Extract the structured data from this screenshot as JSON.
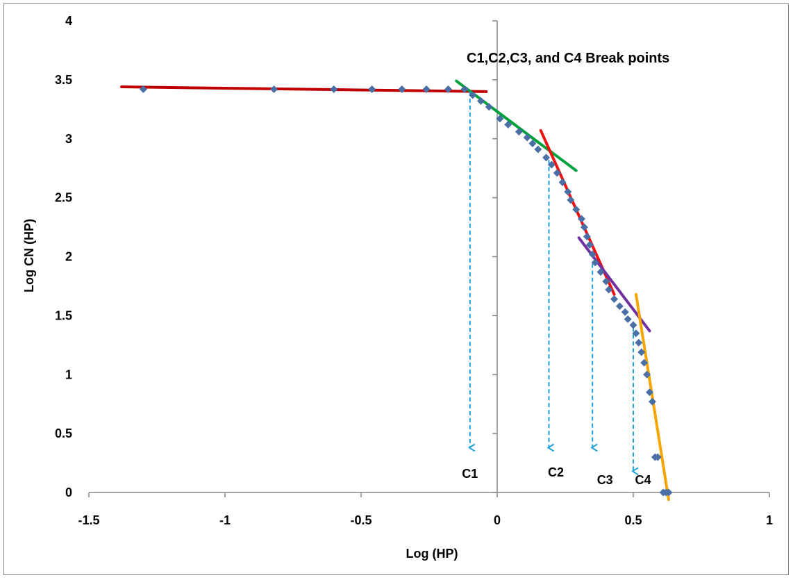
{
  "chart_data": {
    "type": "scatter",
    "title": "C1,C2,C3, and C4 Break points",
    "xlabel": "Log (HP)",
    "ylabel": "Log CN (HP)",
    "xlim": [
      -1.5,
      1
    ],
    "ylim": [
      0,
      4
    ],
    "x_ticks": [
      "-1.5",
      "-1",
      "-0.5",
      "0",
      "0.5",
      "1"
    ],
    "y_ticks": [
      "0",
      "0.5",
      "1",
      "1.5",
      "2",
      "2.5",
      "3",
      "3.5",
      "4"
    ],
    "grid": false,
    "legend": "none",
    "marker_color": "#4a6fa5",
    "points": [
      [
        -1.3,
        3.42
      ],
      [
        -0.82,
        3.42
      ],
      [
        -0.6,
        3.42
      ],
      [
        -0.46,
        3.42
      ],
      [
        -0.35,
        3.42
      ],
      [
        -0.26,
        3.42
      ],
      [
        -0.18,
        3.42
      ],
      [
        -0.12,
        3.42
      ],
      [
        -0.09,
        3.37
      ],
      [
        -0.06,
        3.32
      ],
      [
        -0.03,
        3.27
      ],
      [
        0.01,
        3.17
      ],
      [
        0.04,
        3.12
      ],
      [
        0.08,
        3.06
      ],
      [
        0.11,
        3.01
      ],
      [
        0.13,
        2.96
      ],
      [
        0.15,
        2.91
      ],
      [
        0.18,
        2.84
      ],
      [
        0.2,
        2.78
      ],
      [
        0.22,
        2.71
      ],
      [
        0.24,
        2.63
      ],
      [
        0.26,
        2.55
      ],
      [
        0.27,
        2.48
      ],
      [
        0.29,
        2.4
      ],
      [
        0.31,
        2.32
      ],
      [
        0.32,
        2.25
      ],
      [
        0.33,
        2.17
      ],
      [
        0.34,
        2.1
      ],
      [
        0.35,
        2.02
      ],
      [
        0.36,
        1.95
      ],
      [
        0.38,
        1.87
      ],
      [
        0.4,
        1.79
      ],
      [
        0.41,
        1.72
      ],
      [
        0.43,
        1.64
      ],
      [
        0.45,
        1.58
      ],
      [
        0.47,
        1.53
      ],
      [
        0.48,
        1.47
      ],
      [
        0.5,
        1.42
      ],
      [
        0.51,
        1.35
      ],
      [
        0.52,
        1.27
      ],
      [
        0.53,
        1.19
      ],
      [
        0.54,
        1.1
      ],
      [
        0.55,
        1.0
      ],
      [
        0.56,
        0.85
      ],
      [
        0.57,
        0.77
      ],
      [
        0.58,
        0.3
      ],
      [
        0.59,
        0.3
      ],
      [
        0.61,
        0.0
      ],
      [
        0.62,
        0.0
      ],
      [
        0.63,
        0.0
      ]
    ],
    "fit_lines": [
      {
        "color": "#c00000",
        "from": [
          -1.38,
          3.44
        ],
        "to": [
          -0.04,
          3.4
        ]
      },
      {
        "color": "#00a03c",
        "from": [
          -0.15,
          3.49
        ],
        "to": [
          0.29,
          2.73
        ]
      },
      {
        "color": "#ee1111",
        "from": [
          0.16,
          3.07
        ],
        "to": [
          0.43,
          1.68
        ]
      },
      {
        "color": "#7030a0",
        "from": [
          0.3,
          2.16
        ],
        "to": [
          0.56,
          1.37
        ]
      },
      {
        "color": "#f5a500",
        "from": [
          0.51,
          1.68
        ],
        "to": [
          0.63,
          -0.06
        ]
      }
    ],
    "arrow_color": "#1ea0dc",
    "break_points": [
      {
        "label": "C1",
        "x": -0.1,
        "y_from": 3.4,
        "y_to": 0.38
      },
      {
        "label": "C2",
        "x": 0.19,
        "y_from": 2.82,
        "y_to": 0.38
      },
      {
        "label": "C3",
        "x": 0.35,
        "y_from": 1.94,
        "y_to": 0.38
      },
      {
        "label": "C4",
        "x": 0.5,
        "y_from": 1.4,
        "y_to": 0.18
      }
    ]
  }
}
